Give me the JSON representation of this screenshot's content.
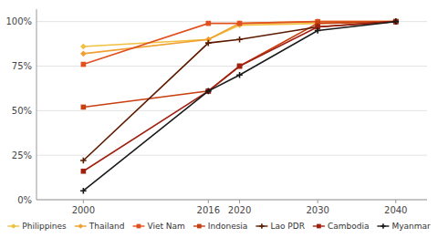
{
  "chart_data": {
    "type": "line",
    "x": [
      2000,
      2016,
      2020,
      2030,
      2040
    ],
    "series": [
      {
        "name": "Philippines",
        "color": "#F0C040",
        "marker": "diamond",
        "values": [
          86,
          90,
          98,
          99,
          100
        ]
      },
      {
        "name": "Thailand",
        "color": "#F0A030",
        "marker": "diamond",
        "values": [
          82,
          90,
          99,
          100,
          100
        ]
      },
      {
        "name": "Viet Nam",
        "color": "#E05020",
        "marker": "square",
        "values": [
          76,
          99,
          99,
          100,
          100
        ]
      },
      {
        "name": "Indonesia",
        "color": "#C84010",
        "marker": "square",
        "values": [
          52,
          61,
          75,
          99,
          100
        ]
      },
      {
        "name": "Lao PDR",
        "color": "#5C1A00",
        "marker": "plus",
        "values": [
          22,
          88,
          90,
          97,
          100
        ]
      },
      {
        "name": "Cambodia",
        "color": "#A02010",
        "marker": "square",
        "values": [
          16,
          61,
          75,
          97,
          100
        ]
      },
      {
        "name": "Myanmar",
        "color": "#1A1A1A",
        "marker": "plus",
        "values": [
          5,
          61,
          70,
          95,
          100
        ]
      }
    ],
    "xlim": [
      1994,
      2044
    ],
    "xticks": [
      2000,
      2016,
      2020,
      2030,
      2040
    ],
    "ylim": [
      0,
      107
    ],
    "yticks": [
      {
        "value": 0,
        "label": "0%"
      },
      {
        "value": 25,
        "label": "25%"
      },
      {
        "value": 50,
        "label": "50%"
      },
      {
        "value": 75,
        "label": "75%"
      },
      {
        "value": 100,
        "label": "100%"
      }
    ],
    "grid": true,
    "legend": "bottom"
  }
}
